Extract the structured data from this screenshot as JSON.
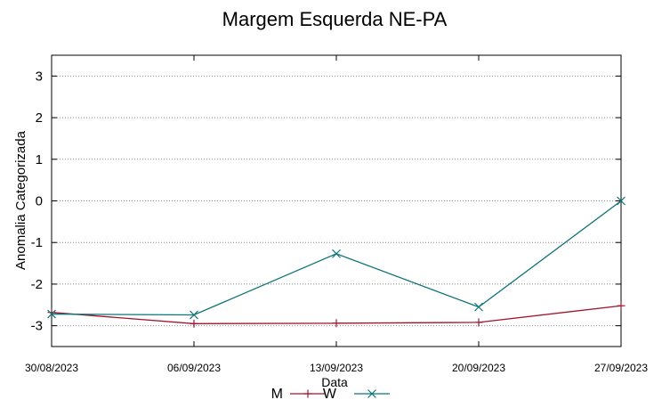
{
  "chart_data": {
    "type": "line",
    "title": "Margem Esquerda NE-PA",
    "xlabel": "Data",
    "ylabel": "Anomalia Categorizada",
    "categories": [
      "30/08/2023",
      "06/09/2023",
      "13/09/2023",
      "20/09/2023",
      "27/09/2023"
    ],
    "yticks": [
      3,
      2,
      1,
      0,
      -1,
      -2,
      -3
    ],
    "ylim": [
      -3.5,
      3.5
    ],
    "grid": true,
    "legend_position": "bottom",
    "series": [
      {
        "name": "M",
        "color": "#a0152d",
        "marker": "plus",
        "values": [
          -2.68,
          -2.95,
          -2.94,
          -2.92,
          -2.52
        ]
      },
      {
        "name": "W",
        "color": "#0f7478",
        "marker": "cross",
        "values": [
          -2.72,
          -2.74,
          -1.27,
          -2.55,
          0.0
        ]
      }
    ]
  }
}
